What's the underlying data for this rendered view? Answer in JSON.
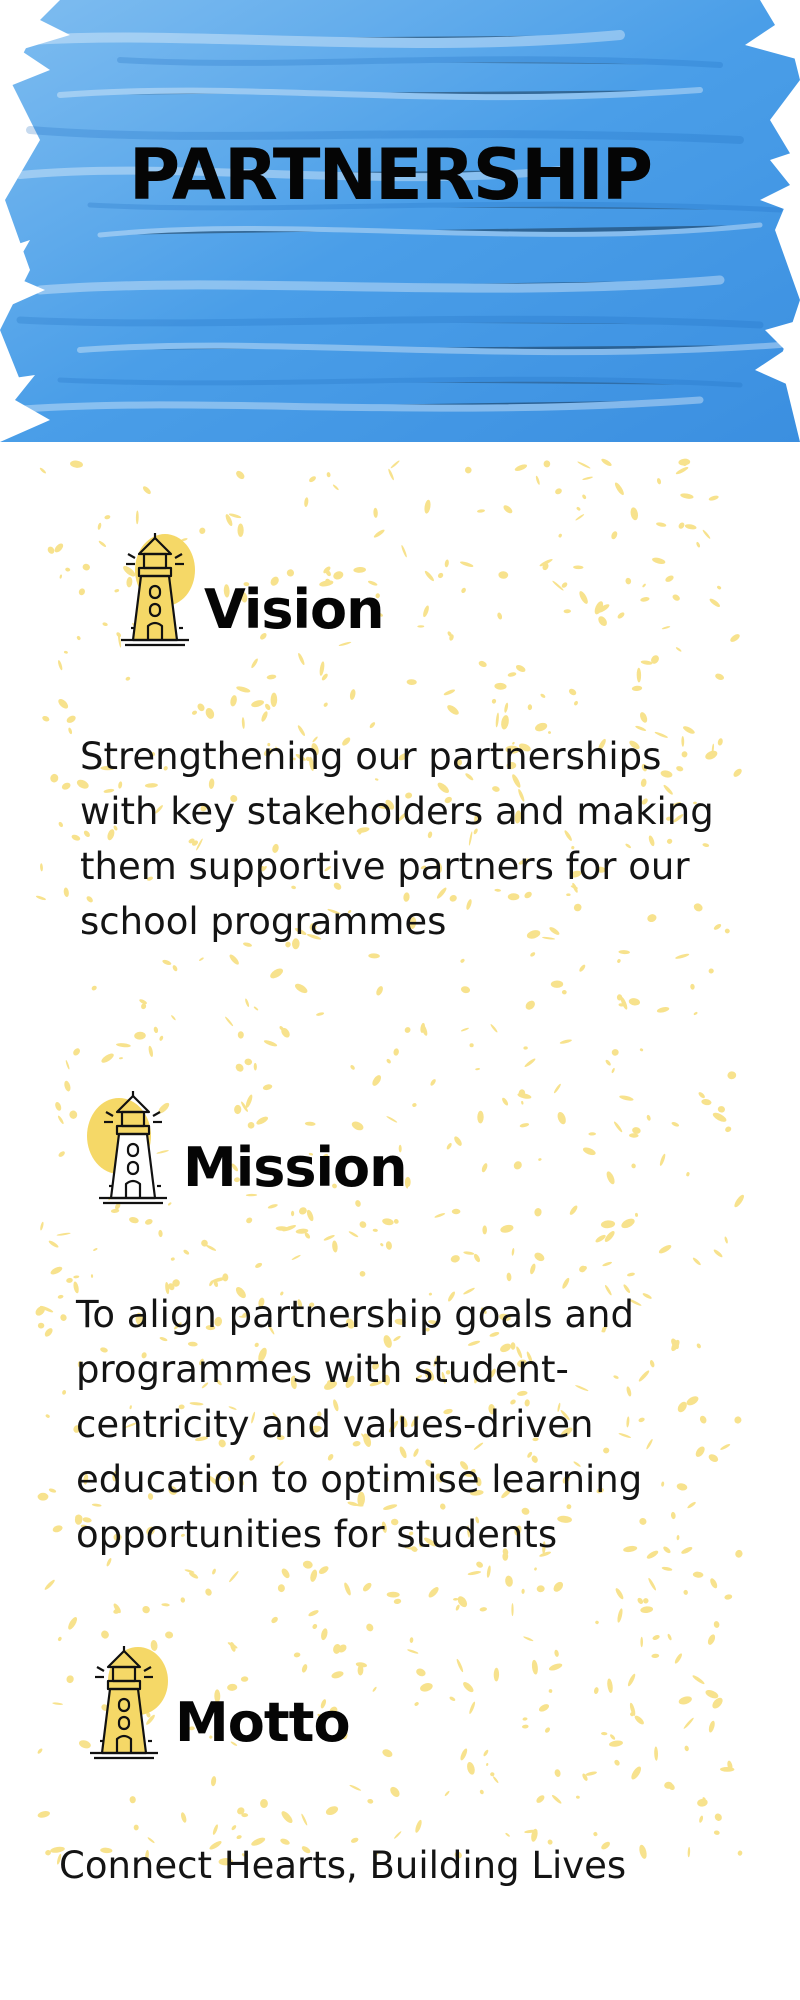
{
  "banner": {
    "title": "PARTNERSHIP",
    "paint_color": "#4a9ee8"
  },
  "accent_color": "#f5d867",
  "sections": [
    {
      "icon": "lighthouse-icon",
      "heading": "Vision",
      "text": "Strengthening our partnerships with key stakeholders and making them supportive partners for our school programmes"
    },
    {
      "icon": "lighthouse-icon",
      "heading": "Mission",
      "text": "To align partnership goals and programmes with student-centricity and values-driven education to optimise learning opportunities for students"
    },
    {
      "icon": "lighthouse-icon",
      "heading": "Motto",
      "text": "Connect Hearts, Building Lives"
    }
  ]
}
